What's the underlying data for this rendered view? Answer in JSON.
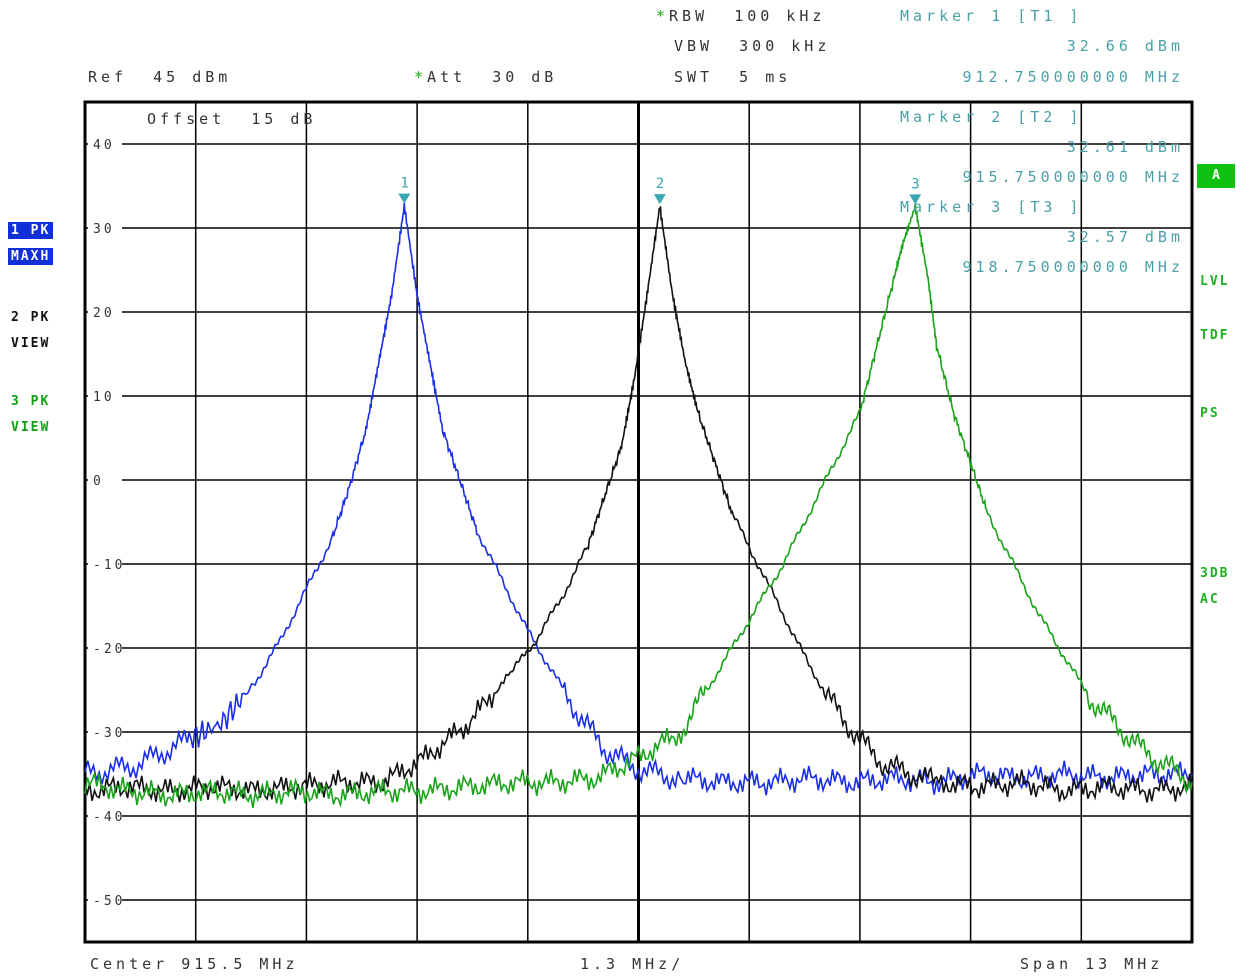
{
  "header": {
    "ref_label": "Ref",
    "ref_value": "45 dBm",
    "att_label": "Att",
    "att_value": "30 dB",
    "rbw_label": "RBW",
    "rbw_value": "100 kHz",
    "vbw_label": "VBW",
    "vbw_value": "300 kHz",
    "swt_label": "SWT",
    "swt_value": "5 ms",
    "offset_label": "Offset",
    "offset_value": "15 dB",
    "star": "*"
  },
  "markers": [
    {
      "title": "Marker 1 [T1 ]",
      "level": "32.66 dBm",
      "freq": "912.750000000 MHz",
      "num": "1"
    },
    {
      "title": "Marker 2 [T2 ]",
      "level": "32.61 dBm",
      "freq": "915.750000000 MHz",
      "num": "2"
    },
    {
      "title": "Marker 3 [T3 ]",
      "level": "32.57 dBm",
      "freq": "918.750000000 MHz",
      "num": "3"
    }
  ],
  "left_labels": {
    "t1_pk": "1 PK",
    "t1_mode": "MAXH",
    "t2_pk": "2 PK",
    "t2_mode": "VIEW",
    "t3_pk": "3 PK",
    "t3_mode": "VIEW"
  },
  "right_labels": {
    "a": "A",
    "lvl": "LVL",
    "tdf": "TDF",
    "ps": "PS",
    "three_db": "3DB",
    "ac": "AC"
  },
  "footer": {
    "center": "Center 915.5 MHz",
    "div": "1.3 MHz/",
    "span": "Span 13 MHz"
  },
  "colors": {
    "trace1": "#1a2ee8",
    "trace2": "#111111",
    "trace3": "#1aa31a",
    "marker": "#3aa6b0",
    "grid": "#000000"
  },
  "chart_data": {
    "type": "line",
    "x_unit": "MHz",
    "y_unit": "dBm",
    "xlim": [
      909.0,
      922.0
    ],
    "ylim": [
      -55,
      45
    ],
    "yticks": [
      40,
      30,
      20,
      10,
      0,
      -10,
      -20,
      -30,
      -40,
      -50
    ],
    "grid": true,
    "series": [
      {
        "trace": "1",
        "color": "#1a2ee8",
        "x": [
          909.0,
          909.6,
          910.2,
          910.6,
          911.0,
          911.3,
          911.6,
          911.9,
          912.1,
          912.3,
          912.45,
          912.6,
          912.75,
          912.9,
          913.05,
          913.2,
          913.4,
          913.6,
          913.9,
          914.2,
          914.5,
          914.8,
          915.1,
          915.4,
          915.7,
          916.0,
          916.5,
          917.0,
          917.5,
          918.0,
          918.5,
          919.0,
          919.5,
          920.0,
          920.5,
          921.0,
          921.5,
          922.0
        ],
        "y": [
          -35,
          -34,
          -31,
          -29,
          -24,
          -19,
          -13,
          -7,
          -1,
          6,
          14,
          22,
          32.66,
          22,
          14,
          6,
          0,
          -6,
          -12,
          -18,
          -23,
          -28,
          -32,
          -34,
          -35,
          -35.5,
          -36,
          -36,
          -35.5,
          -36,
          -35.5,
          -36,
          -35,
          -35.5,
          -35,
          -35.5,
          -35,
          -35
        ]
      },
      {
        "trace": "2",
        "color": "#111111",
        "x": [
          909.0,
          909.5,
          910.0,
          910.5,
          911.0,
          911.5,
          912.0,
          912.5,
          913.0,
          913.5,
          914.0,
          914.3,
          914.6,
          914.9,
          915.1,
          915.3,
          915.45,
          915.6,
          915.75,
          915.9,
          916.05,
          916.2,
          916.4,
          916.6,
          916.9,
          917.2,
          917.5,
          917.8,
          918.1,
          918.4,
          918.7,
          919.0,
          919.5,
          920.0,
          920.5,
          921.0,
          921.5,
          922.0
        ],
        "y": [
          -37,
          -36.5,
          -37,
          -36.5,
          -37,
          -36.5,
          -36,
          -36,
          -33,
          -29,
          -23,
          -19,
          -14,
          -8,
          -2,
          4,
          12,
          22,
          32.61,
          22,
          14,
          8,
          2,
          -4,
          -10,
          -16,
          -22,
          -27,
          -31,
          -34,
          -35,
          -36,
          -36.5,
          -36,
          -37,
          -36.5,
          -37,
          -36.5
        ]
      },
      {
        "trace": "3",
        "color": "#1aa31a",
        "x": [
          909.0,
          909.5,
          910.0,
          910.5,
          911.0,
          911.5,
          912.0,
          912.5,
          913.0,
          913.5,
          914.0,
          914.5,
          915.0,
          915.5,
          916.0,
          916.3,
          916.6,
          916.9,
          917.2,
          917.5,
          917.8,
          918.1,
          918.3,
          918.5,
          918.6,
          918.75,
          918.9,
          919.0,
          919.2,
          919.4,
          919.6,
          919.9,
          920.2,
          920.5,
          920.8,
          921.1,
          921.4,
          921.7,
          922.0
        ],
        "y": [
          -36,
          -37,
          -37.5,
          -37,
          -37.5,
          -37,
          -37.5,
          -37,
          -37,
          -36.5,
          -36,
          -36,
          -35.5,
          -33,
          -30,
          -25,
          -20,
          -15,
          -10,
          -4,
          2,
          8,
          16,
          24,
          28,
          32.57,
          24,
          16,
          8,
          2,
          -4,
          -10,
          -16,
          -21,
          -26,
          -29,
          -32,
          -34,
          -36
        ]
      }
    ],
    "markers": [
      {
        "label": "1",
        "x": 912.75,
        "y": 32.66
      },
      {
        "label": "2",
        "x": 915.75,
        "y": 32.61
      },
      {
        "label": "3",
        "x": 918.75,
        "y": 32.57
      }
    ]
  }
}
